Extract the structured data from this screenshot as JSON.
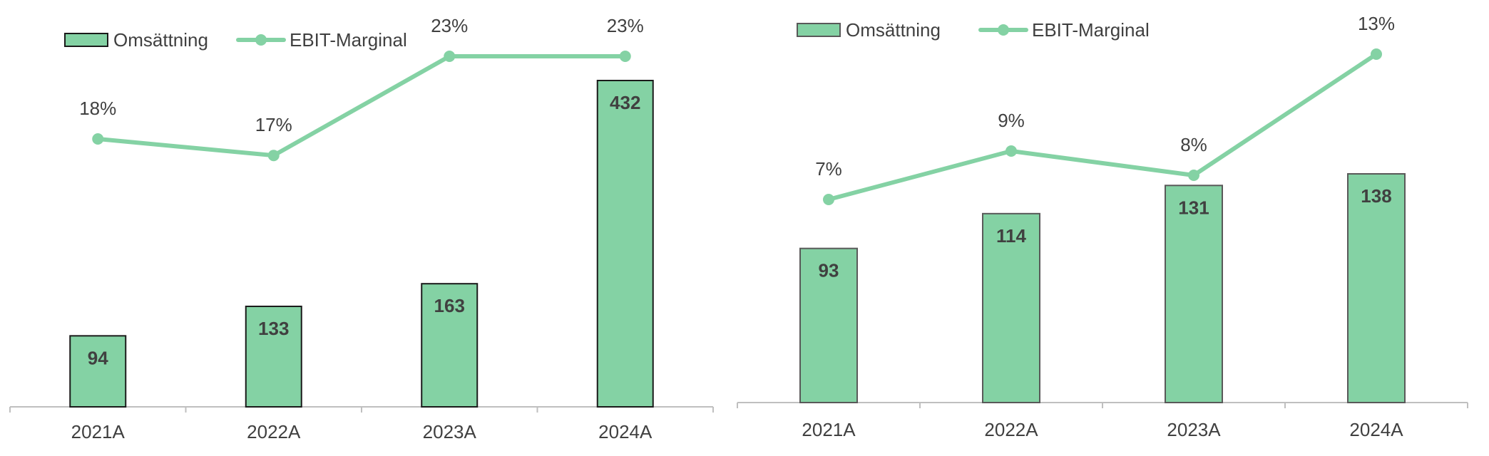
{
  "chart_data": [
    {
      "type": "bar",
      "categories": [
        "2021A",
        "2022A",
        "2023A",
        "2024A"
      ],
      "series": [
        {
          "name": "Omsättning",
          "type": "bar",
          "values": [
            94,
            133,
            163,
            432
          ],
          "labels": [
            "94",
            "133",
            "163",
            "432"
          ]
        },
        {
          "name": "EBIT-Marginal",
          "type": "line",
          "values": [
            18,
            17,
            23,
            23
          ],
          "labels": [
            "18%",
            "17%",
            "23%",
            "23%"
          ]
        }
      ],
      "legend": "top-left",
      "grid": false,
      "colors": {
        "bar_fill": "#84d2a4",
        "bar_stroke": "#1a1a1a",
        "line": "#84d2a4",
        "axis": "#bfbfbf"
      }
    },
    {
      "type": "bar",
      "categories": [
        "2021A",
        "2022A",
        "2023A",
        "2024A"
      ],
      "series": [
        {
          "name": "Omsättning",
          "type": "bar",
          "values": [
            93,
            114,
            131,
            138
          ],
          "labels": [
            "93",
            "114",
            "131",
            "138"
          ]
        },
        {
          "name": "EBIT-Marginal",
          "type": "line",
          "values": [
            7,
            9,
            8,
            13
          ],
          "labels": [
            "7%",
            "9%",
            "8%",
            "13%"
          ]
        }
      ],
      "legend": "top-left",
      "grid": false,
      "colors": {
        "bar_fill": "#84d2a4",
        "bar_stroke": "#595959",
        "line": "#84d2a4",
        "axis": "#bfbfbf"
      }
    }
  ]
}
